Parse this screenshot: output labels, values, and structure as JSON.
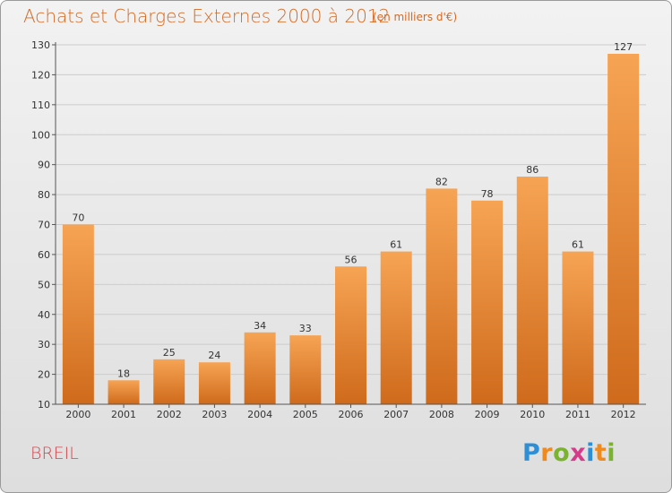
{
  "header": {
    "title": "Achats et Charges Externes 2000 à 2012",
    "subtitle": "(en milliers d'€)"
  },
  "footer": {
    "place": "BREIL",
    "logo_letters": [
      "P",
      "r",
      "o",
      "x",
      "i",
      "t",
      "i"
    ],
    "logo_colors": [
      "#2f8fd6",
      "#f08a1c",
      "#7ab32d",
      "#d63a8a",
      "#2f8fd6",
      "#f08a1c",
      "#7ab32d"
    ]
  },
  "colors": {
    "bar_top": "#f6a454",
    "bar_bottom": "#cf6a1b",
    "grid": "#cccccc",
    "axis": "#555555"
  },
  "chart_data": {
    "type": "bar",
    "title": "Achats et Charges Externes 2000 à 2012",
    "subtitle": "(en milliers d'€)",
    "categories": [
      "2000",
      "2001",
      "2002",
      "2003",
      "2004",
      "2005",
      "2006",
      "2007",
      "2008",
      "2009",
      "2010",
      "2011",
      "2012"
    ],
    "values": [
      70,
      18,
      25,
      24,
      34,
      33,
      56,
      61,
      82,
      78,
      86,
      61,
      127
    ],
    "ylim": [
      10,
      130
    ],
    "yticks": [
      10,
      20,
      30,
      40,
      50,
      60,
      70,
      80,
      90,
      100,
      110,
      120,
      130
    ],
    "grid": true,
    "data_labels": true,
    "xlabel": "",
    "ylabel": ""
  }
}
